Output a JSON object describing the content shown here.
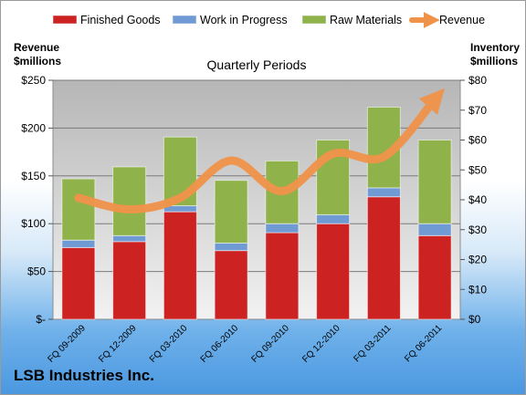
{
  "chart_data": {
    "type": "bar",
    "stacked": true,
    "title": "Quarterly Periods",
    "company": "LSB Industries Inc.",
    "ylabel_left": "Revenue\n$millions",
    "ylabel_right": "Inventory\n$millions",
    "categories": [
      "FQ 09-2009",
      "FQ 12-2009",
      "FQ 03-2010",
      "FQ 06-2010",
      "FQ 09-2010",
      "FQ 12-2010",
      "FQ 03-2011",
      "FQ 06-2011"
    ],
    "bar_axis": "right",
    "series": [
      {
        "name": "Finished Goods",
        "values": [
          24,
          26,
          36,
          23,
          29,
          32,
          41,
          28
        ],
        "color": "#cc2222"
      },
      {
        "name": "Work in Progress",
        "values": [
          2.5,
          2,
          2,
          2.5,
          3,
          3,
          3,
          4
        ],
        "color": "#6f9ad4"
      },
      {
        "name": "Raw Materials",
        "values": [
          20.5,
          23,
          23,
          21,
          21,
          25,
          27,
          28
        ],
        "color": "#8fb34a"
      }
    ],
    "line_series": {
      "name": "Revenue",
      "axis": "left",
      "values": [
        127,
        115,
        127,
        166,
        134,
        173,
        170,
        230
      ],
      "color": "#f0934a"
    },
    "ylim_left": [
      0,
      250
    ],
    "ylim_right": [
      0,
      80
    ],
    "left_ticks": [
      {
        "value": 0,
        "label": "$-"
      },
      {
        "value": 50,
        "label": "$50"
      },
      {
        "value": 100,
        "label": "$100"
      },
      {
        "value": 150,
        "label": "$150"
      },
      {
        "value": 200,
        "label": "$200"
      },
      {
        "value": 250,
        "label": "$250"
      }
    ],
    "right_ticks": [
      {
        "value": 0,
        "label": "$0"
      },
      {
        "value": 10,
        "label": "$10"
      },
      {
        "value": 20,
        "label": "$20"
      },
      {
        "value": 30,
        "label": "$30"
      },
      {
        "value": 40,
        "label": "$40"
      },
      {
        "value": 50,
        "label": "$50"
      },
      {
        "value": 60,
        "label": "$60"
      },
      {
        "value": 70,
        "label": "$70"
      },
      {
        "value": 80,
        "label": "$80"
      }
    ],
    "grid": true,
    "legend_position": "top"
  }
}
